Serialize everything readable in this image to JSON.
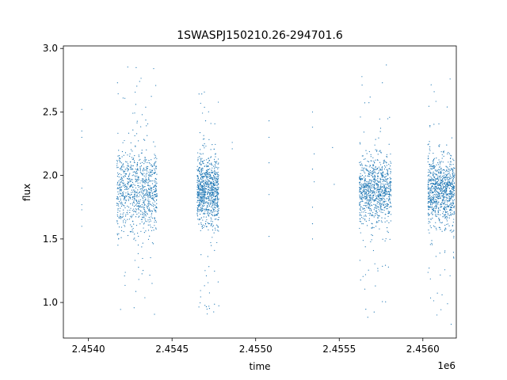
{
  "chart_data": {
    "type": "scatter",
    "title": "1SWASPJ150210.26-294701.6",
    "xlabel": "time",
    "ylabel": "flux",
    "x_offset_label": "1e6",
    "xlim": [
      2453850,
      2456200
    ],
    "ylim": [
      0.72,
      3.02
    ],
    "x_ticks": [
      2454000,
      2454500,
      2455000,
      2455500,
      2456000
    ],
    "x_tick_labels": [
      "2.4540",
      "2.4545",
      "2.4550",
      "2.4555",
      "2.4560"
    ],
    "y_ticks": [
      1.0,
      1.5,
      2.0,
      2.5,
      3.0
    ],
    "y_tick_labels": [
      "1.0",
      "1.5",
      "2.0",
      "2.5",
      "3.0"
    ],
    "grid": false,
    "marker_color": "#1f77b4",
    "series": [
      {
        "clusters": [
          {
            "x_start": 2454170,
            "x_end": 2454410,
            "y_center": 1.88,
            "y_spread": 0.17,
            "y_min": 0.84,
            "y_max": 2.92
          },
          {
            "x_start": 2454650,
            "x_end": 2454780,
            "y_center": 1.88,
            "y_spread": 0.13,
            "y_min": 0.88,
            "y_max": 2.72
          },
          {
            "x_start": 2455620,
            "x_end": 2455810,
            "y_center": 1.88,
            "y_spread": 0.13,
            "y_min": 0.88,
            "y_max": 2.9
          },
          {
            "x_start": 2456030,
            "x_end": 2456190,
            "y_center": 1.88,
            "y_spread": 0.13,
            "y_min": 0.82,
            "y_max": 2.78
          }
        ],
        "sparse_points": [
          {
            "x": 2453960,
            "y": 2.52
          },
          {
            "x": 2453960,
            "y": 2.35
          },
          {
            "x": 2453960,
            "y": 2.3
          },
          {
            "x": 2453960,
            "y": 1.9
          },
          {
            "x": 2453960,
            "y": 1.77
          },
          {
            "x": 2453960,
            "y": 1.73
          },
          {
            "x": 2453960,
            "y": 1.6
          },
          {
            "x": 2454860,
            "y": 2.26
          },
          {
            "x": 2454860,
            "y": 2.21
          },
          {
            "x": 2455080,
            "y": 2.43
          },
          {
            "x": 2455080,
            "y": 2.3
          },
          {
            "x": 2455080,
            "y": 2.1
          },
          {
            "x": 2455080,
            "y": 1.85
          },
          {
            "x": 2455080,
            "y": 1.52
          },
          {
            "x": 2455340,
            "y": 2.5
          },
          {
            "x": 2455340,
            "y": 2.38
          },
          {
            "x": 2455350,
            "y": 2.17
          },
          {
            "x": 2455340,
            "y": 2.05
          },
          {
            "x": 2455350,
            "y": 1.95
          },
          {
            "x": 2455340,
            "y": 1.75
          },
          {
            "x": 2455340,
            "y": 1.62
          },
          {
            "x": 2455340,
            "y": 1.5
          },
          {
            "x": 2455460,
            "y": 2.22
          },
          {
            "x": 2455470,
            "y": 1.93
          }
        ]
      }
    ]
  }
}
